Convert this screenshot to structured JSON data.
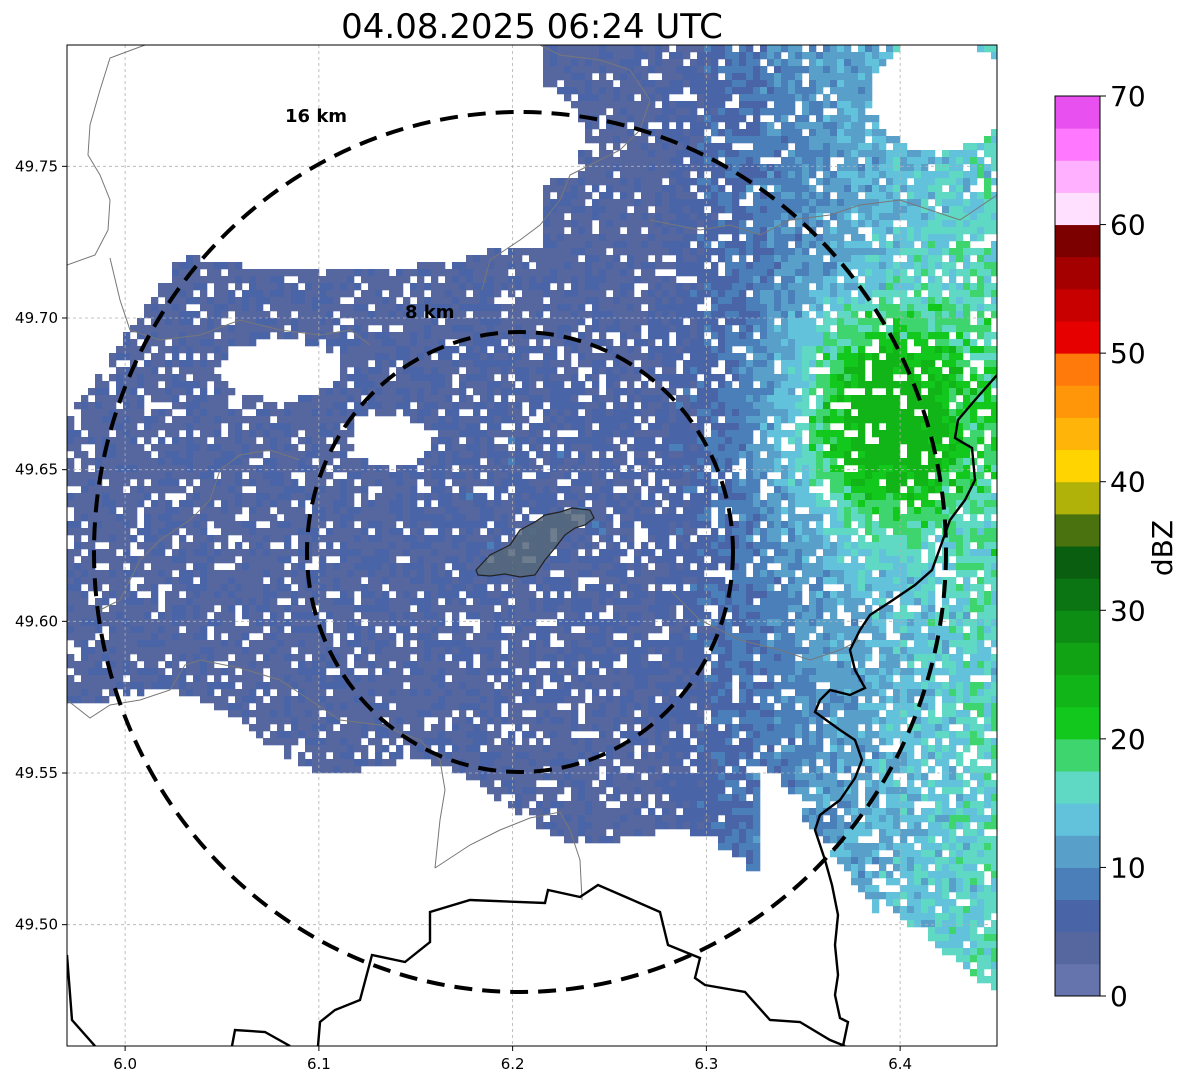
{
  "title": "04.08.2025 06:24 UTC",
  "map": {
    "lon_range": [
      5.97,
      6.45
    ],
    "lat_range": [
      49.46,
      49.79
    ],
    "x_ticks": [
      {
        "value": 6.0,
        "label": "6.0"
      },
      {
        "value": 6.1,
        "label": "6.1"
      },
      {
        "value": 6.2,
        "label": "6.2"
      },
      {
        "value": 6.3,
        "label": "6.3"
      },
      {
        "value": 6.4,
        "label": "6.4"
      }
    ],
    "y_ticks": [
      {
        "value": 49.5,
        "label": "49.50"
      },
      {
        "value": 49.55,
        "label": "49.55"
      },
      {
        "value": 49.6,
        "label": "49.60"
      },
      {
        "value": 49.65,
        "label": "49.65"
      },
      {
        "value": 49.7,
        "label": "49.70"
      },
      {
        "value": 49.75,
        "label": "49.75"
      }
    ],
    "grid": true,
    "range_rings": [
      {
        "label": "16 km"
      },
      {
        "label": "8 km"
      }
    ]
  },
  "colorbar": {
    "label": "dBZ",
    "min": 0,
    "max": 70,
    "ticks": [
      {
        "value": 0,
        "label": "0"
      },
      {
        "value": 10,
        "label": "10"
      },
      {
        "value": 20,
        "label": "20"
      },
      {
        "value": 30,
        "label": "30"
      },
      {
        "value": 40,
        "label": "40"
      },
      {
        "value": 50,
        "label": "50"
      },
      {
        "value": 60,
        "label": "60"
      },
      {
        "value": 70,
        "label": "70"
      }
    ],
    "colors": [
      "#6674ad",
      "#56679f",
      "#4a64a8",
      "#4a7fba",
      "#58a0ca",
      "#62c2dc",
      "#5fd8c4",
      "#3ed46e",
      "#13c81c",
      "#12b518",
      "#12a314",
      "#0e8d14",
      "#0a7512",
      "#0a5e10",
      "#4a7310",
      "#b0b20a",
      "#ffd400",
      "#ffb40a",
      "#ff960a",
      "#ff7a0a",
      "#e60000",
      "#c80000",
      "#a50000",
      "#7d0000",
      "#ffe0ff",
      "#ffb0ff",
      "#ff78ff",
      "#e850f0"
    ]
  }
}
